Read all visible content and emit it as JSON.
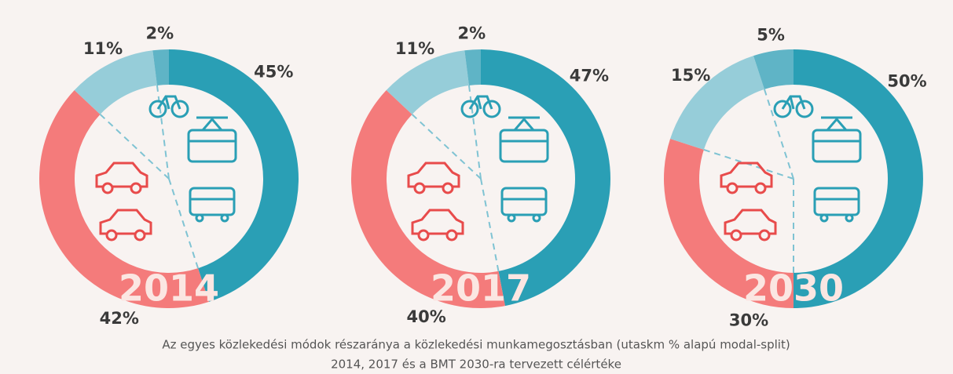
{
  "chart_data": [
    {
      "type": "pie",
      "title": "2014",
      "values": [
        45,
        42,
        11,
        2
      ],
      "value_labels": [
        "45%",
        "42%",
        "11%",
        "2%"
      ],
      "colors": [
        "#2a9fb5",
        "#f47b7b",
        "#96cdd9",
        "#5fb4c6"
      ]
    },
    {
      "type": "pie",
      "title": "2017",
      "values": [
        47,
        40,
        11,
        2
      ],
      "value_labels": [
        "47%",
        "40%",
        "11%",
        "2%"
      ],
      "colors": [
        "#2a9fb5",
        "#f47b7b",
        "#96cdd9",
        "#5fb4c6"
      ]
    },
    {
      "type": "pie",
      "title": "2030",
      "values": [
        50,
        30,
        15,
        5
      ],
      "value_labels": [
        "50%",
        "30%",
        "15%",
        "5%"
      ],
      "colors": [
        "#2a9fb5",
        "#f47b7b",
        "#96cdd9",
        "#5fb4c6"
      ]
    }
  ],
  "caption": [
    "Az egyes közlekedési módok részaránya a közlekedési munkamegosztásban (utaskm % alapú modal-split)",
    "2014, 2017 és a BMT 2030-ra tervezett célértéke"
  ]
}
